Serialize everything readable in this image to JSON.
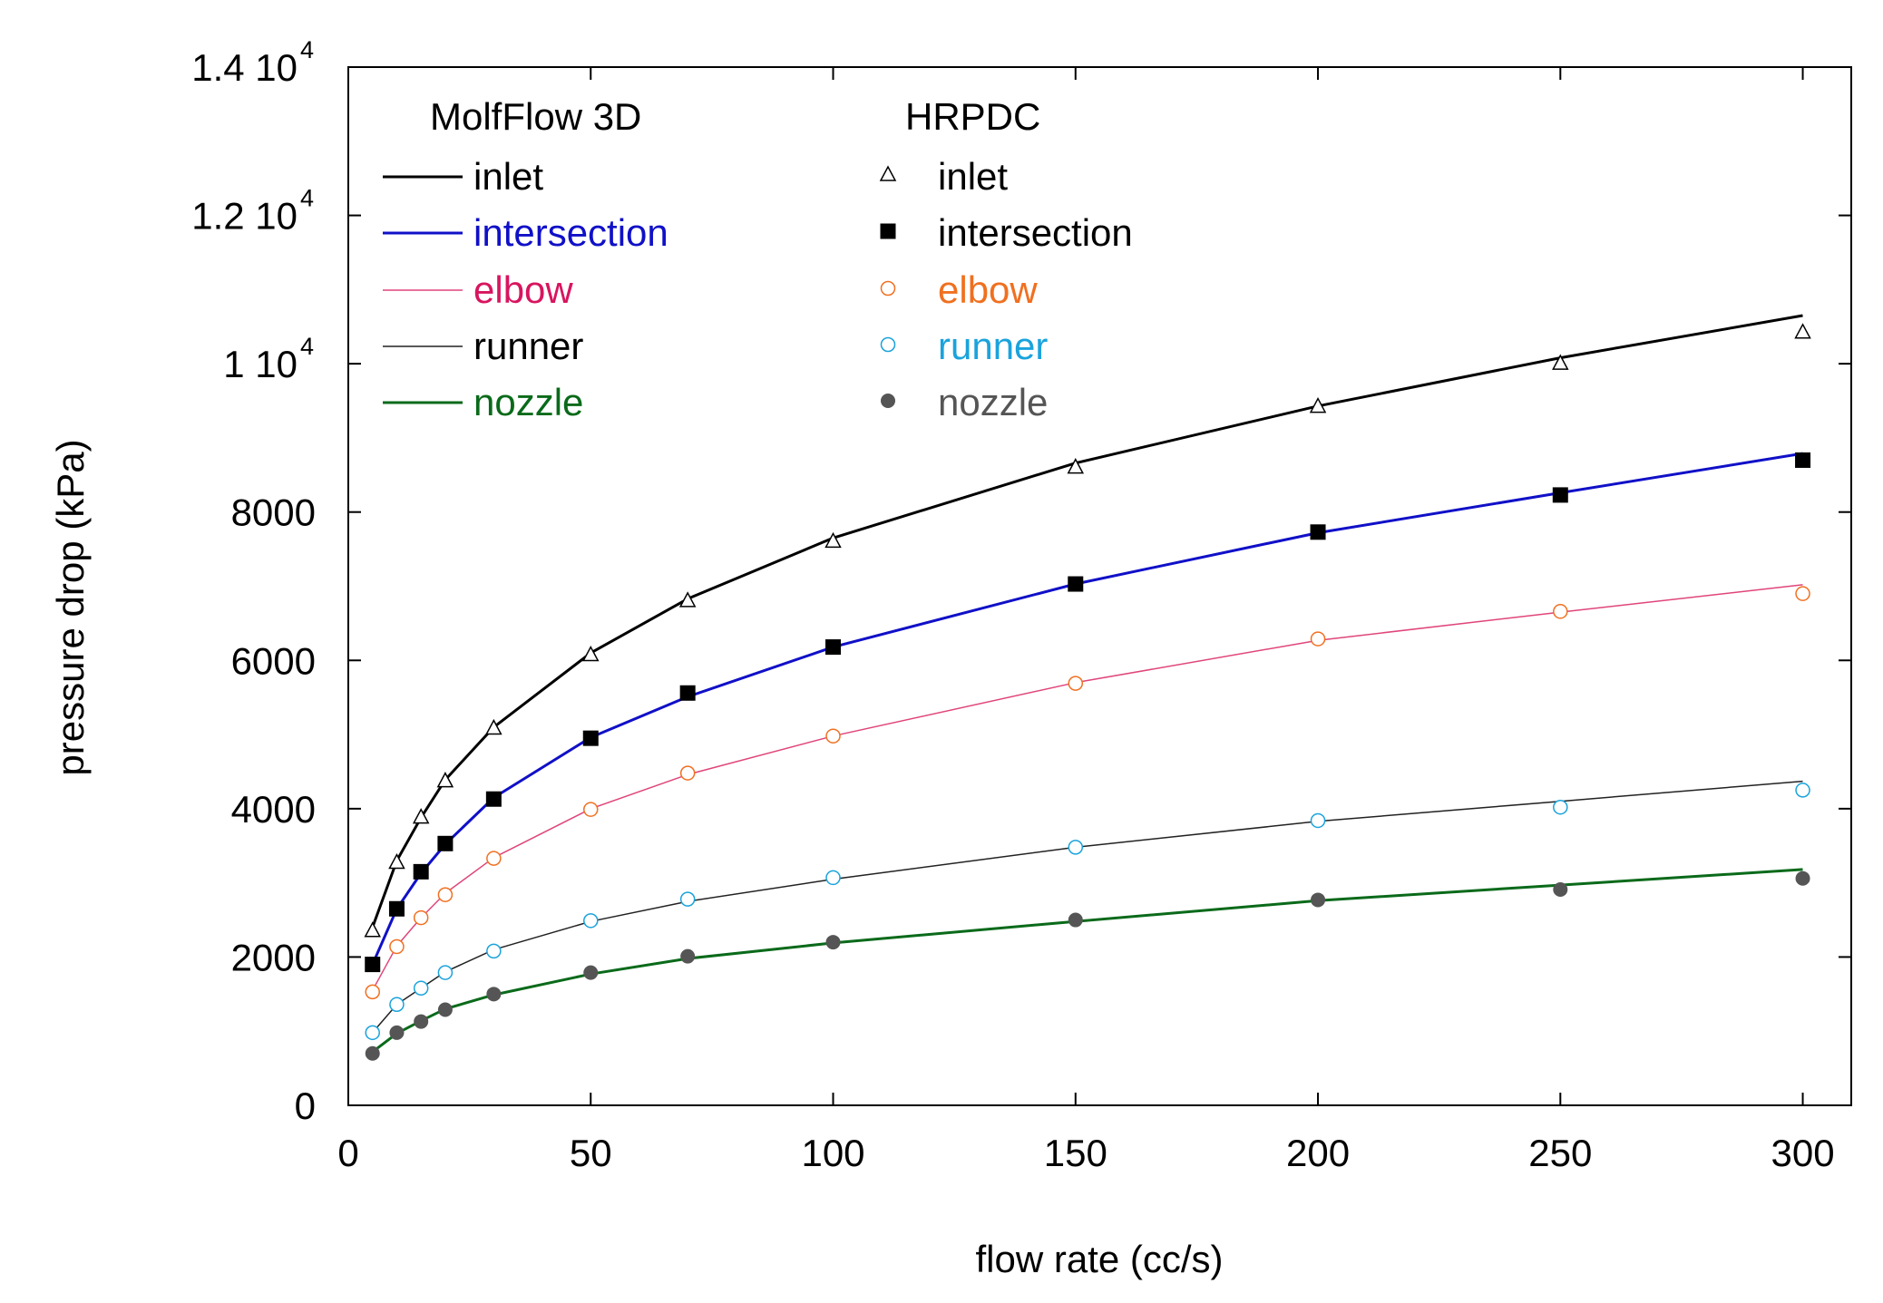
{
  "chart_data": {
    "type": "line",
    "title": "",
    "xlabel": "flow rate (cc/s)",
    "ylabel": "pressure drop (kPa)",
    "xlim": [
      0,
      310
    ],
    "ylim": [
      0,
      14000
    ],
    "grid": false,
    "x_ticks": [
      {
        "value": 0,
        "label": "0"
      },
      {
        "value": 50,
        "label": "50"
      },
      {
        "value": 100,
        "label": "100"
      },
      {
        "value": 150,
        "label": "150"
      },
      {
        "value": 200,
        "label": "200"
      },
      {
        "value": 250,
        "label": "250"
      },
      {
        "value": 300,
        "label": "300"
      }
    ],
    "y_ticks": [
      {
        "value": 0,
        "label": "0",
        "exp": ""
      },
      {
        "value": 2000,
        "label": "2000",
        "exp": ""
      },
      {
        "value": 4000,
        "label": "4000",
        "exp": ""
      },
      {
        "value": 6000,
        "label": "6000",
        "exp": ""
      },
      {
        "value": 8000,
        "label": "8000",
        "exp": ""
      },
      {
        "value": 10000,
        "label": "1 10",
        "exp": "4"
      },
      {
        "value": 12000,
        "label": "1.2 10",
        "exp": "4"
      },
      {
        "value": 14000,
        "label": "1.4 10",
        "exp": "4"
      }
    ],
    "legend": {
      "placement": "top-left",
      "sim_title": "MolfFlow 3D",
      "exp_title": "HRPDC"
    },
    "line_series": [
      {
        "name": "inlet",
        "color": "#000000",
        "width": 3,
        "x": [
          5,
          10,
          15,
          20,
          30,
          50,
          70,
          100,
          150,
          200,
          250,
          300
        ],
        "y": [
          2400,
          3300,
          3880,
          4390,
          5100,
          6100,
          6830,
          7650,
          8660,
          9430,
          10080,
          10650
        ]
      },
      {
        "name": "intersection",
        "color": "#1010c8",
        "width": 3,
        "x": [
          5,
          10,
          15,
          20,
          30,
          50,
          70,
          100,
          150,
          200,
          250,
          300
        ],
        "y": [
          1900,
          2650,
          3130,
          3520,
          4150,
          4960,
          5510,
          6180,
          7030,
          7720,
          8260,
          8790
        ]
      },
      {
        "name": "elbow",
        "color": "#e0457b",
        "width": 1.5,
        "x": [
          5,
          10,
          15,
          20,
          30,
          50,
          70,
          100,
          150,
          200,
          250,
          300
        ],
        "y": [
          1550,
          2150,
          2530,
          2860,
          3340,
          4000,
          4460,
          4980,
          5700,
          6270,
          6650,
          7020
        ]
      },
      {
        "name": "runner",
        "color": "#222222",
        "width": 1.5,
        "x": [
          5,
          10,
          15,
          20,
          30,
          50,
          70,
          100,
          150,
          200,
          250,
          300
        ],
        "y": [
          980,
          1360,
          1580,
          1800,
          2100,
          2480,
          2750,
          3050,
          3480,
          3830,
          4100,
          4370
        ]
      },
      {
        "name": "nozzle",
        "color": "#0a6a1a",
        "width": 3,
        "x": [
          5,
          10,
          15,
          20,
          30,
          50,
          70,
          100,
          150,
          200,
          250,
          300
        ],
        "y": [
          720,
          970,
          1140,
          1300,
          1490,
          1770,
          1980,
          2190,
          2480,
          2760,
          2970,
          3180
        ]
      }
    ],
    "marker_series": [
      {
        "name": "inlet",
        "marker": "triangle-open",
        "color": "#000000",
        "x": [
          5,
          10,
          15,
          20,
          30,
          50,
          70,
          100,
          150,
          200,
          250,
          300
        ],
        "y": [
          2350,
          3270,
          3880,
          4370,
          5080,
          6070,
          6800,
          7600,
          8600,
          9420,
          10000,
          10420
        ]
      },
      {
        "name": "intersection",
        "marker": "square-filled",
        "color": "#000000",
        "x": [
          5,
          10,
          15,
          20,
          30,
          50,
          70,
          100,
          150,
          200,
          250,
          300
        ],
        "y": [
          1900,
          2650,
          3150,
          3530,
          4130,
          4950,
          5560,
          6180,
          7030,
          7730,
          8230,
          8700
        ]
      },
      {
        "name": "elbow",
        "marker": "circle-open",
        "color": "#f07020",
        "x": [
          5,
          10,
          15,
          20,
          30,
          50,
          70,
          100,
          150,
          200,
          250,
          300
        ],
        "y": [
          1530,
          2140,
          2530,
          2840,
          3330,
          3990,
          4480,
          4980,
          5690,
          6290,
          6660,
          6900
        ]
      },
      {
        "name": "runner",
        "marker": "circle-open",
        "color": "#1aa3dc",
        "x": [
          5,
          10,
          15,
          20,
          30,
          50,
          70,
          100,
          150,
          200,
          250,
          300
        ],
        "y": [
          980,
          1360,
          1580,
          1790,
          2080,
          2490,
          2780,
          3070,
          3480,
          3840,
          4020,
          4250
        ]
      },
      {
        "name": "nozzle",
        "marker": "circle-filled",
        "color": "#555555",
        "x": [
          5,
          10,
          15,
          20,
          30,
          50,
          70,
          100,
          150,
          200,
          250,
          300
        ],
        "y": [
          700,
          980,
          1130,
          1290,
          1500,
          1790,
          2010,
          2200,
          2500,
          2770,
          2910,
          3060
        ]
      }
    ],
    "legend_text_colors": {
      "sim": [
        "#000000",
        "#1010c8",
        "#d8155f",
        "#000000",
        "#0a6a1a"
      ],
      "exp": [
        "#000000",
        "#000000",
        "#f07020",
        "#1aa3dc",
        "#555555"
      ]
    }
  }
}
